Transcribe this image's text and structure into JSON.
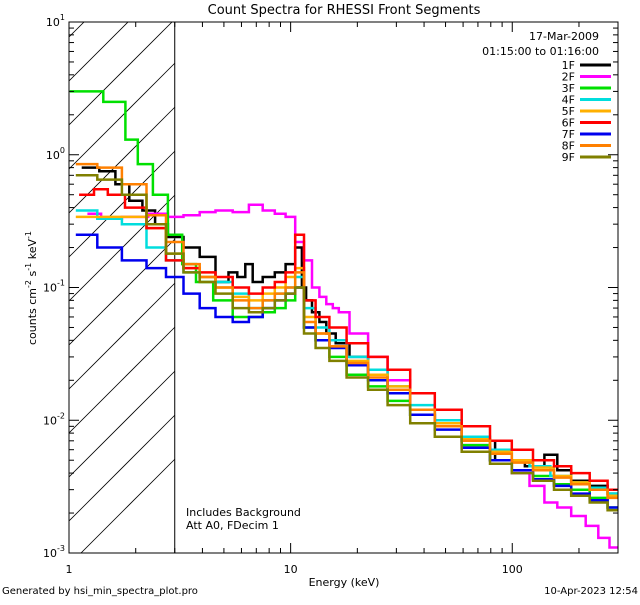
{
  "chart_data": {
    "type": "line",
    "title": "Count Spectra for RHESSI Front Segments",
    "xlabel": "Energy (keV)",
    "ylabel": "counts cm-2 s-1 keV-1",
    "x_scale": "log",
    "y_scale": "log",
    "xlim": [
      1,
      300
    ],
    "ylim": [
      0.001,
      10
    ],
    "x_ticks": [
      {
        "value": 1,
        "label": "1"
      },
      {
        "value": 10,
        "label": "10"
      },
      {
        "value": 100,
        "label": "100"
      }
    ],
    "y_ticks": [
      {
        "value": 0.001,
        "mant": "10",
        "exp": "-3"
      },
      {
        "value": 0.01,
        "mant": "10",
        "exp": "-2"
      },
      {
        "value": 0.1,
        "mant": "10",
        "exp": "-1"
      },
      {
        "value": 1,
        "mant": "10",
        "exp": "0"
      },
      {
        "value": 10,
        "mant": "10",
        "exp": "1"
      }
    ],
    "date": "17-Mar-2009",
    "time_range": "01:15:00 to 01:16:00",
    "annotations": [
      "Includes Background",
      "Att A0, FDecim 1"
    ],
    "excluded_region": {
      "from": 1,
      "to": 3
    },
    "series": [
      {
        "name": "1F",
        "color": "#000000",
        "points": [
          [
            1.25,
            0.8
          ],
          [
            1.5,
            0.75
          ],
          [
            1.75,
            0.6
          ],
          [
            2,
            0.45
          ],
          [
            2.3,
            0.38
          ],
          [
            2.6,
            0.3
          ],
          [
            3,
            0.24
          ],
          [
            3.6,
            0.2
          ],
          [
            4.2,
            0.17
          ],
          [
            5,
            0.11
          ],
          [
            5.5,
            0.13
          ],
          [
            6,
            0.12
          ],
          [
            6.5,
            0.15
          ],
          [
            7,
            0.11
          ],
          [
            8,
            0.12
          ],
          [
            9,
            0.13
          ],
          [
            10,
            0.15
          ],
          [
            11,
            0.2
          ],
          [
            11.5,
            0.1
          ],
          [
            12,
            0.08
          ],
          [
            13,
            0.065
          ],
          [
            14,
            0.055
          ],
          [
            15,
            0.045
          ],
          [
            17,
            0.038
          ],
          [
            20,
            0.03
          ],
          [
            25,
            0.022
          ],
          [
            30,
            0.017
          ],
          [
            40,
            0.011
          ],
          [
            50,
            0.009
          ],
          [
            70,
            0.007
          ],
          [
            100,
            0.005
          ],
          [
            130,
            0.0045
          ],
          [
            150,
            0.0055
          ],
          [
            170,
            0.0042
          ],
          [
            200,
            0.0035
          ],
          [
            250,
            0.0032
          ],
          [
            290,
            0.0028
          ]
        ]
      },
      {
        "name": "2F",
        "color": "#ff00ff",
        "points": [
          [
            1.3,
            0.36
          ],
          [
            1.5,
            0.33
          ],
          [
            2,
            0.34
          ],
          [
            2.6,
            0.36
          ],
          [
            3,
            0.34
          ],
          [
            3.6,
            0.35
          ],
          [
            4.2,
            0.37
          ],
          [
            5,
            0.38
          ],
          [
            6,
            0.37
          ],
          [
            7,
            0.42
          ],
          [
            8,
            0.38
          ],
          [
            9,
            0.36
          ],
          [
            10,
            0.34
          ],
          [
            11,
            0.22
          ],
          [
            12,
            0.16
          ],
          [
            13,
            0.1
          ],
          [
            14,
            0.085
          ],
          [
            15,
            0.075
          ],
          [
            16,
            0.07
          ],
          [
            17,
            0.065
          ],
          [
            20,
            0.045
          ],
          [
            25,
            0.03
          ],
          [
            30,
            0.02
          ],
          [
            40,
            0.012
          ],
          [
            50,
            0.009
          ],
          [
            70,
            0.0065
          ],
          [
            90,
            0.005
          ],
          [
            110,
            0.004
          ],
          [
            130,
            0.0032
          ],
          [
            150,
            0.0024
          ],
          [
            170,
            0.0022
          ],
          [
            200,
            0.0019
          ],
          [
            230,
            0.0016
          ],
          [
            260,
            0.0013
          ],
          [
            290,
            0.0011
          ]
        ]
      },
      {
        "name": "3F",
        "color": "#00e000",
        "points": [
          [
            1.2,
            3
          ],
          [
            1.7,
            2.5
          ],
          [
            1.9,
            1.3
          ],
          [
            2.2,
            0.85
          ],
          [
            2.6,
            0.5
          ],
          [
            3,
            0.25
          ],
          [
            3.5,
            0.15
          ],
          [
            4,
            0.11
          ],
          [
            5,
            0.08
          ],
          [
            6,
            0.06
          ],
          [
            7,
            0.06
          ],
          [
            8,
            0.065
          ],
          [
            9,
            0.07
          ],
          [
            10,
            0.08
          ],
          [
            11,
            0.1
          ],
          [
            12,
            0.05
          ],
          [
            14,
            0.04
          ],
          [
            16,
            0.03
          ],
          [
            20,
            0.022
          ],
          [
            25,
            0.018
          ],
          [
            30,
            0.014
          ],
          [
            40,
            0.011
          ],
          [
            50,
            0.009
          ],
          [
            70,
            0.0065
          ],
          [
            90,
            0.005
          ],
          [
            110,
            0.0042
          ],
          [
            140,
            0.0038
          ],
          [
            170,
            0.0033
          ],
          [
            200,
            0.003
          ],
          [
            250,
            0.0026
          ],
          [
            290,
            0.0022
          ]
        ]
      },
      {
        "name": "4F",
        "color": "#00dddd",
        "points": [
          [
            1.2,
            0.38
          ],
          [
            1.5,
            0.33
          ],
          [
            2,
            0.3
          ],
          [
            2.5,
            0.2
          ],
          [
            3,
            0.16
          ],
          [
            3.6,
            0.13
          ],
          [
            4.2,
            0.12
          ],
          [
            5,
            0.11
          ],
          [
            6,
            0.09
          ],
          [
            7,
            0.07
          ],
          [
            8,
            0.08
          ],
          [
            9,
            0.09
          ],
          [
            10,
            0.1
          ],
          [
            11,
            0.12
          ],
          [
            12,
            0.07
          ],
          [
            14,
            0.05
          ],
          [
            16,
            0.04
          ],
          [
            20,
            0.03
          ],
          [
            25,
            0.024
          ],
          [
            30,
            0.018
          ],
          [
            40,
            0.013
          ],
          [
            50,
            0.01
          ],
          [
            70,
            0.0075
          ],
          [
            90,
            0.006
          ],
          [
            110,
            0.005
          ],
          [
            130,
            0.0045
          ],
          [
            170,
            0.0038
          ],
          [
            200,
            0.0034
          ],
          [
            250,
            0.0031
          ],
          [
            290,
            0.0028
          ]
        ]
      },
      {
        "name": "5F",
        "color": "#ffb000",
        "points": [
          [
            1.2,
            0.34
          ],
          [
            1.5,
            0.34
          ],
          [
            2,
            0.34
          ],
          [
            2.5,
            0.28
          ],
          [
            3,
            0.18
          ],
          [
            3.6,
            0.14
          ],
          [
            4.2,
            0.12
          ],
          [
            5,
            0.1
          ],
          [
            6,
            0.085
          ],
          [
            7,
            0.08
          ],
          [
            8,
            0.09
          ],
          [
            9,
            0.1
          ],
          [
            10,
            0.12
          ],
          [
            11,
            0.14
          ],
          [
            12,
            0.06
          ],
          [
            14,
            0.045
          ],
          [
            16,
            0.036
          ],
          [
            20,
            0.028
          ],
          [
            25,
            0.022
          ],
          [
            30,
            0.018
          ],
          [
            40,
            0.012
          ],
          [
            50,
            0.0095
          ],
          [
            70,
            0.0072
          ],
          [
            90,
            0.0058
          ],
          [
            110,
            0.005
          ],
          [
            140,
            0.0044
          ],
          [
            170,
            0.0038
          ],
          [
            200,
            0.0034
          ],
          [
            250,
            0.003
          ],
          [
            290,
            0.0027
          ]
        ]
      },
      {
        "name": "6F",
        "color": "#ff0000",
        "points": [
          [
            1.2,
            0.5
          ],
          [
            1.4,
            0.55
          ],
          [
            1.6,
            0.5
          ],
          [
            2,
            0.4
          ],
          [
            2.5,
            0.28
          ],
          [
            3,
            0.16
          ],
          [
            3.6,
            0.14
          ],
          [
            4.2,
            0.13
          ],
          [
            5,
            0.12
          ],
          [
            6,
            0.1
          ],
          [
            7,
            0.09
          ],
          [
            8,
            0.1
          ],
          [
            9,
            0.11
          ],
          [
            10,
            0.13
          ],
          [
            11,
            0.25
          ],
          [
            12,
            0.08
          ],
          [
            14,
            0.06
          ],
          [
            16,
            0.05
          ],
          [
            20,
            0.038
          ],
          [
            25,
            0.03
          ],
          [
            30,
            0.024
          ],
          [
            40,
            0.016
          ],
          [
            50,
            0.012
          ],
          [
            70,
            0.009
          ],
          [
            90,
            0.007
          ],
          [
            110,
            0.006
          ],
          [
            140,
            0.005
          ],
          [
            170,
            0.0045
          ],
          [
            200,
            0.004
          ],
          [
            250,
            0.0035
          ],
          [
            290,
            0.003
          ]
        ]
      },
      {
        "name": "7F",
        "color": "#0000ee",
        "points": [
          [
            1.2,
            0.25
          ],
          [
            1.5,
            0.2
          ],
          [
            2,
            0.16
          ],
          [
            2.5,
            0.14
          ],
          [
            3,
            0.12
          ],
          [
            3.6,
            0.09
          ],
          [
            4.2,
            0.07
          ],
          [
            5,
            0.06
          ],
          [
            6,
            0.055
          ],
          [
            7,
            0.06
          ],
          [
            8,
            0.07
          ],
          [
            9,
            0.08
          ],
          [
            10,
            0.09
          ],
          [
            11,
            0.1
          ],
          [
            12,
            0.05
          ],
          [
            14,
            0.04
          ],
          [
            16,
            0.035
          ],
          [
            20,
            0.026
          ],
          [
            25,
            0.02
          ],
          [
            30,
            0.016
          ],
          [
            40,
            0.011
          ],
          [
            50,
            0.0085
          ],
          [
            70,
            0.0062
          ],
          [
            90,
            0.005
          ],
          [
            110,
            0.0042
          ],
          [
            140,
            0.0036
          ],
          [
            170,
            0.0032
          ],
          [
            200,
            0.0028
          ],
          [
            250,
            0.0025
          ],
          [
            290,
            0.0022
          ]
        ]
      },
      {
        "name": "8F",
        "color": "#ff8000",
        "points": [
          [
            1.2,
            0.85
          ],
          [
            1.5,
            0.8
          ],
          [
            2,
            0.6
          ],
          [
            2.5,
            0.35
          ],
          [
            3,
            0.22
          ],
          [
            3.6,
            0.15
          ],
          [
            4.2,
            0.12
          ],
          [
            5,
            0.1
          ],
          [
            6,
            0.08
          ],
          [
            7,
            0.07
          ],
          [
            8,
            0.08
          ],
          [
            9,
            0.09
          ],
          [
            10,
            0.1
          ],
          [
            11,
            0.13
          ],
          [
            12,
            0.055
          ],
          [
            14,
            0.045
          ],
          [
            16,
            0.036
          ],
          [
            20,
            0.027
          ],
          [
            25,
            0.021
          ],
          [
            30,
            0.017
          ],
          [
            40,
            0.012
          ],
          [
            50,
            0.009
          ],
          [
            70,
            0.007
          ],
          [
            90,
            0.0056
          ],
          [
            110,
            0.0048
          ],
          [
            140,
            0.0042
          ],
          [
            170,
            0.0037
          ],
          [
            200,
            0.0033
          ],
          [
            250,
            0.003
          ],
          [
            290,
            0.0026
          ]
        ]
      },
      {
        "name": "9F",
        "color": "#808000",
        "points": [
          [
            1.2,
            0.7
          ],
          [
            1.5,
            0.65
          ],
          [
            2,
            0.5
          ],
          [
            2.5,
            0.3
          ],
          [
            3,
            0.18
          ],
          [
            3.6,
            0.13
          ],
          [
            4.2,
            0.11
          ],
          [
            5,
            0.09
          ],
          [
            6,
            0.07
          ],
          [
            7,
            0.065
          ],
          [
            8,
            0.07
          ],
          [
            9,
            0.08
          ],
          [
            10,
            0.09
          ],
          [
            11,
            0.1
          ],
          [
            12,
            0.045
          ],
          [
            14,
            0.035
          ],
          [
            16,
            0.028
          ],
          [
            20,
            0.021
          ],
          [
            25,
            0.017
          ],
          [
            30,
            0.013
          ],
          [
            40,
            0.0095
          ],
          [
            50,
            0.0075
          ],
          [
            70,
            0.0058
          ],
          [
            90,
            0.0047
          ],
          [
            110,
            0.004
          ],
          [
            140,
            0.0035
          ],
          [
            170,
            0.003
          ],
          [
            200,
            0.0027
          ],
          [
            250,
            0.0024
          ],
          [
            290,
            0.0021
          ]
        ]
      }
    ]
  },
  "footer": {
    "generated_by": "Generated by hsi_min_spectra_plot.pro",
    "timestamp": "10-Apr-2023 12:54"
  }
}
